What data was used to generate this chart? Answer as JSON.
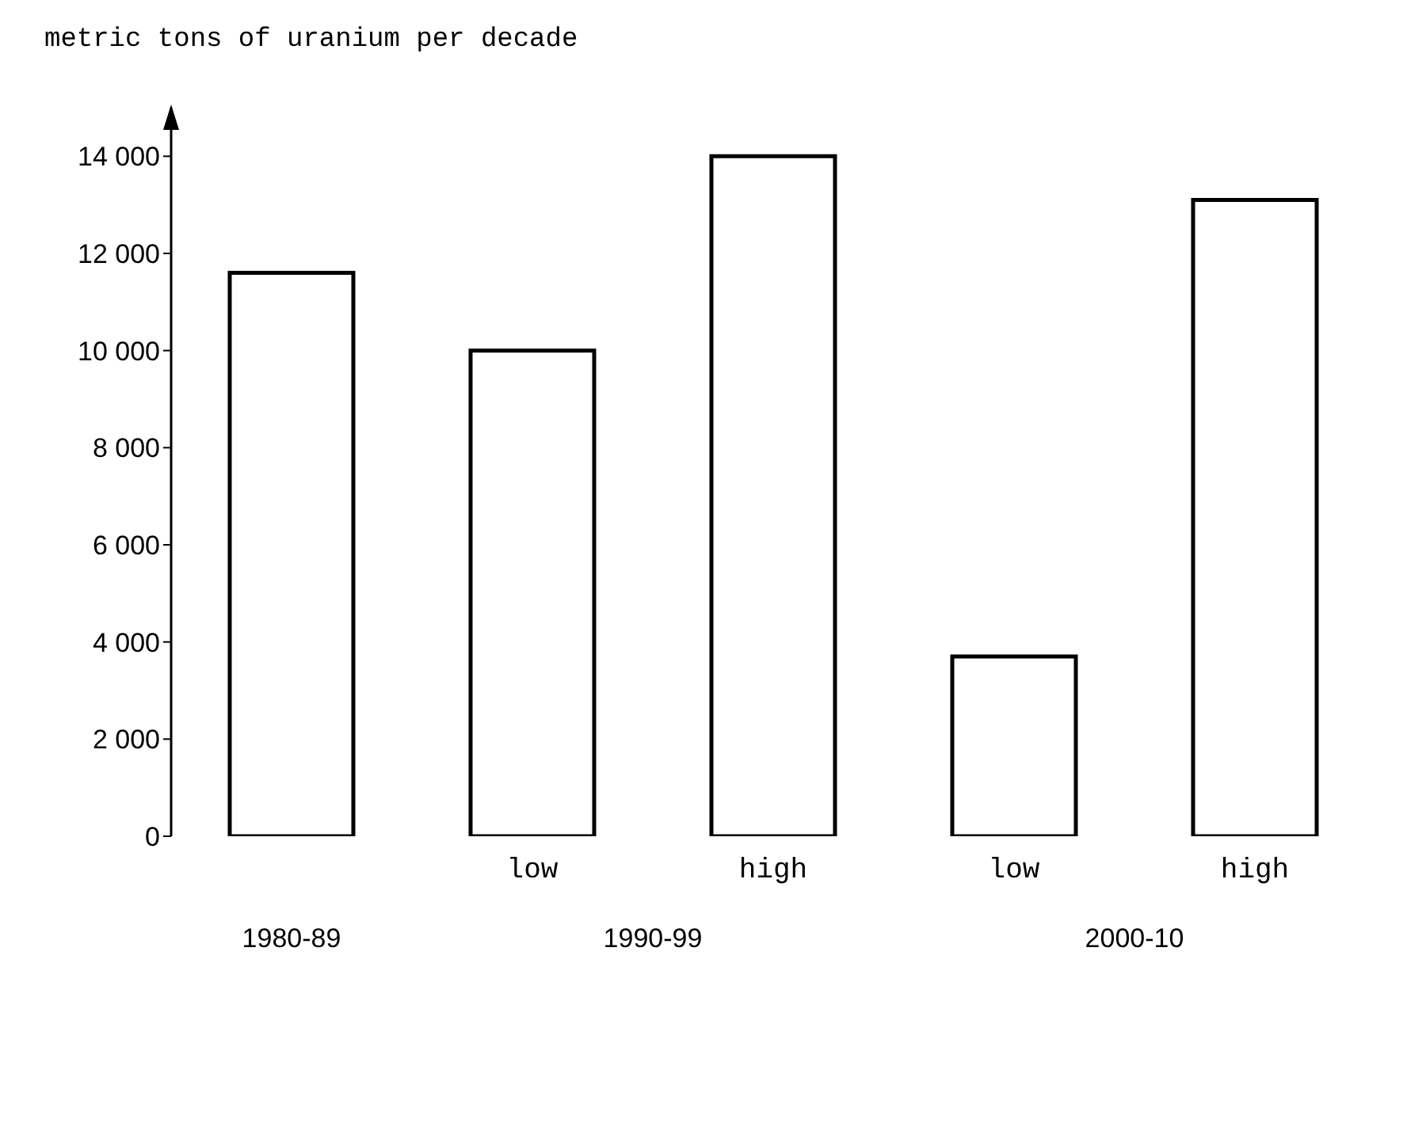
{
  "chart_data": {
    "type": "bar",
    "ylabel": "metric tons of uranium per decade",
    "categories": [
      null,
      "low",
      "high",
      "low",
      "high"
    ],
    "values": [
      11600,
      10000,
      14000,
      3700,
      13100
    ],
    "color": "#ffffff",
    "ylim": [
      0,
      15000
    ],
    "yticks": [
      {
        "value": 0,
        "label": "0"
      },
      {
        "value": 2000,
        "label": "2 000"
      },
      {
        "value": 4000,
        "label": "4 000"
      },
      {
        "value": 6000,
        "label": "6 000"
      },
      {
        "value": 8000,
        "label": "8 000"
      },
      {
        "value": 10000,
        "label": "10 000"
      },
      {
        "value": 12000,
        "label": "12 000"
      },
      {
        "value": 14000,
        "label": "14 000"
      }
    ],
    "annotations": [
      "1980-89",
      "1990-99",
      "2000-10"
    ],
    "grid": false,
    "legend": false
  }
}
